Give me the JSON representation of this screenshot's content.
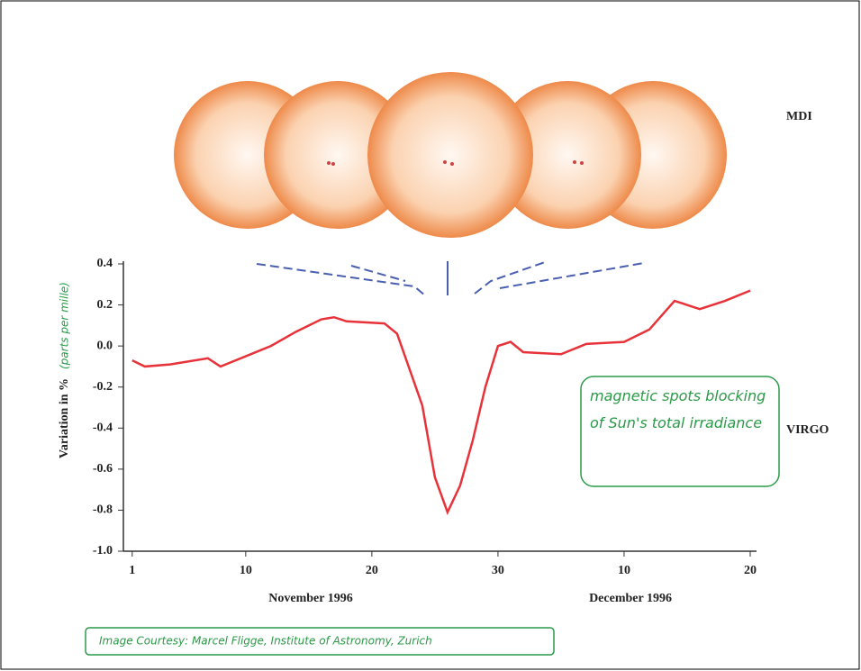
{
  "chart_data": {
    "type": "line",
    "y_label": "Variation in %",
    "y_label_note": "(parts per mille)",
    "x_groups": [
      "November 1996",
      "December 1996"
    ],
    "image_labels": [
      "MDI",
      "VIRGO"
    ],
    "annotation": "magnetic spots blocking of Sun's total irradiance",
    "credit": "Image Courtesy: Marcel Fligge, Institute of Astronomy, Zurich",
    "x": [
      1,
      2,
      4,
      7,
      8,
      10,
      12,
      14,
      16,
      17,
      18,
      21,
      22,
      24,
      25,
      26,
      27,
      28,
      29,
      30,
      31,
      32,
      35,
      37,
      40,
      42,
      44,
      46,
      48,
      50
    ],
    "series": [
      {
        "name": "VIRGO",
        "color": "#e8323a",
        "values": [
          -0.07,
          -0.1,
          -0.09,
          -0.06,
          -0.1,
          -0.05,
          0.0,
          0.07,
          0.13,
          0.14,
          0.12,
          0.11,
          0.06,
          -0.29,
          -0.64,
          -0.81,
          -0.68,
          -0.46,
          -0.2,
          0.0,
          0.02,
          -0.03,
          -0.04,
          0.01,
          0.02,
          0.08,
          0.22,
          0.18,
          0.22,
          0.27
        ]
      }
    ],
    "xlim": [
      0.3,
      50.5
    ],
    "xticks": [
      1,
      10,
      20,
      30,
      {
        "value": 40,
        "label": "10"
      },
      {
        "value": 50,
        "label": "20"
      }
    ],
    "ylim": [
      -1.0,
      0.4
    ],
    "yticks": [
      0.4,
      0.2,
      {
        "value": 0,
        "label": "0.0"
      },
      -0.2,
      -0.4,
      -0.6,
      -0.8,
      {
        "value": -1,
        "label": "-1.0"
      }
    ]
  }
}
